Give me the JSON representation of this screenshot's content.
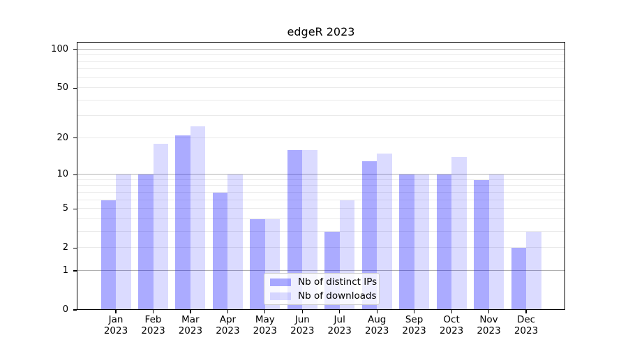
{
  "title": "edgeR 2023",
  "chart_data": {
    "type": "bar",
    "title": "edgeR 2023",
    "categories": [
      "Jan",
      "Feb",
      "Mar",
      "Apr",
      "May",
      "Jun",
      "Jul",
      "Aug",
      "Sep",
      "Oct",
      "Nov",
      "Dec"
    ],
    "category_year": "2023",
    "series": [
      {
        "name": "Nb of distinct IPs",
        "color_hex": "#aaaaff",
        "rgba": "rgba(0,0,255,0.33)",
        "values": [
          6,
          10,
          21,
          7,
          4,
          16,
          3,
          13,
          10,
          10,
          9,
          2
        ]
      },
      {
        "name": "Nb of downloads",
        "color_hex": "#dbdbff",
        "rgba": "rgba(0,0,255,0.14)",
        "values": [
          10,
          18,
          25,
          10,
          4,
          16,
          6,
          15,
          10,
          14,
          10,
          3
        ]
      }
    ],
    "y_axis": {
      "scale": "log10(1+x)",
      "ticks": [
        0,
        1,
        2,
        5,
        10,
        20,
        50,
        100
      ],
      "ylim": [
        0,
        114.5
      ],
      "grid_major": [
        1,
        10,
        100
      ],
      "grid_minor": [
        2,
        3,
        4,
        5,
        6,
        7,
        8,
        9,
        20,
        30,
        40,
        50,
        60,
        70,
        80,
        90
      ]
    },
    "xlabel": "",
    "ylabel": "",
    "grid": "on",
    "legend_position": "lower center"
  },
  "colors": {
    "background": "#ffffff",
    "axis": "#000000",
    "grid_major": "#b0b0b0",
    "grid_minor": "#eaeaea",
    "bar_distinct_ips": "#aaaaff",
    "bar_downloads": "#dbdbff",
    "legend_border": "#cccccc"
  }
}
